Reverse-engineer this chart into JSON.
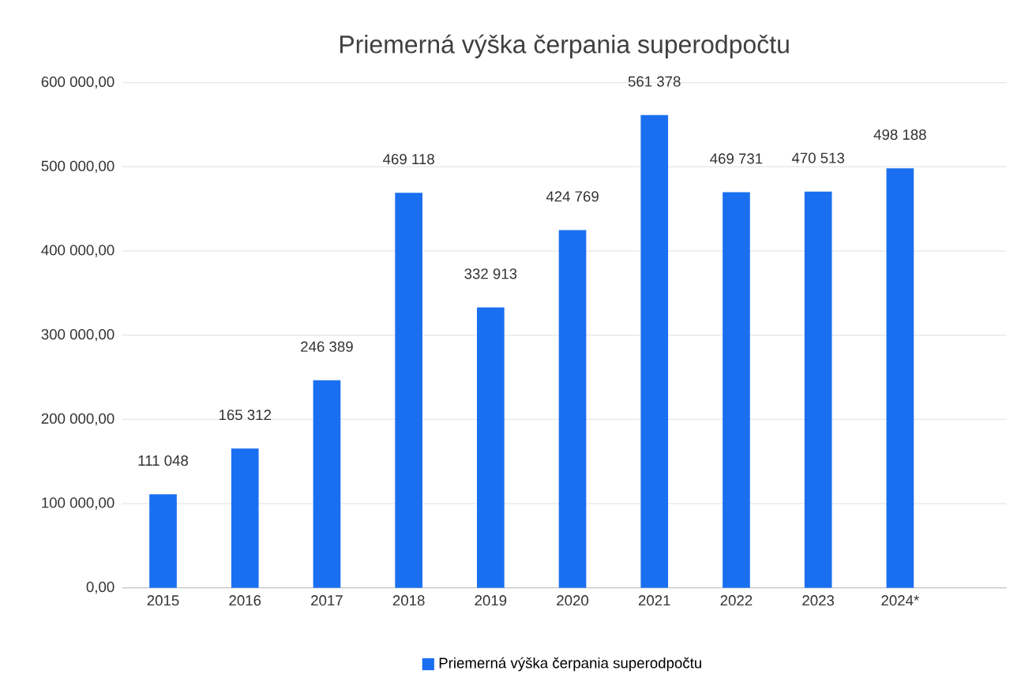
{
  "chart_data": {
    "type": "bar",
    "title": "Priemerná výška čerpania superodpočtu",
    "categories": [
      "2015",
      "2016",
      "2017",
      "2018",
      "2019",
      "2020",
      "2021",
      "2022",
      "2023",
      "2024*"
    ],
    "series": [
      {
        "name": "Priemerná výška čerpania superodpočtu",
        "color": "#1a6ff0",
        "values": [
          111048,
          165312,
          246389,
          469118,
          332913,
          424769,
          561378,
          469731,
          470513,
          498188
        ],
        "value_labels": [
          "111 048",
          "165 312",
          "246 389",
          "469 118",
          "332 913",
          "424 769",
          "561 378",
          "469 731",
          "470 513",
          "498 188"
        ]
      }
    ],
    "ylim": [
      0,
      600000
    ],
    "yticks": [
      {
        "value": 0,
        "label": "0,00"
      },
      {
        "value": 100000,
        "label": "100 000,00"
      },
      {
        "value": 200000,
        "label": "200 000,00"
      },
      {
        "value": 300000,
        "label": "300 000,00"
      },
      {
        "value": 400000,
        "label": "400 000,00"
      },
      {
        "value": 500000,
        "label": "500 000,00"
      },
      {
        "value": 600000,
        "label": "600 000,00"
      }
    ],
    "grid": "y",
    "legend": "bottom"
  }
}
